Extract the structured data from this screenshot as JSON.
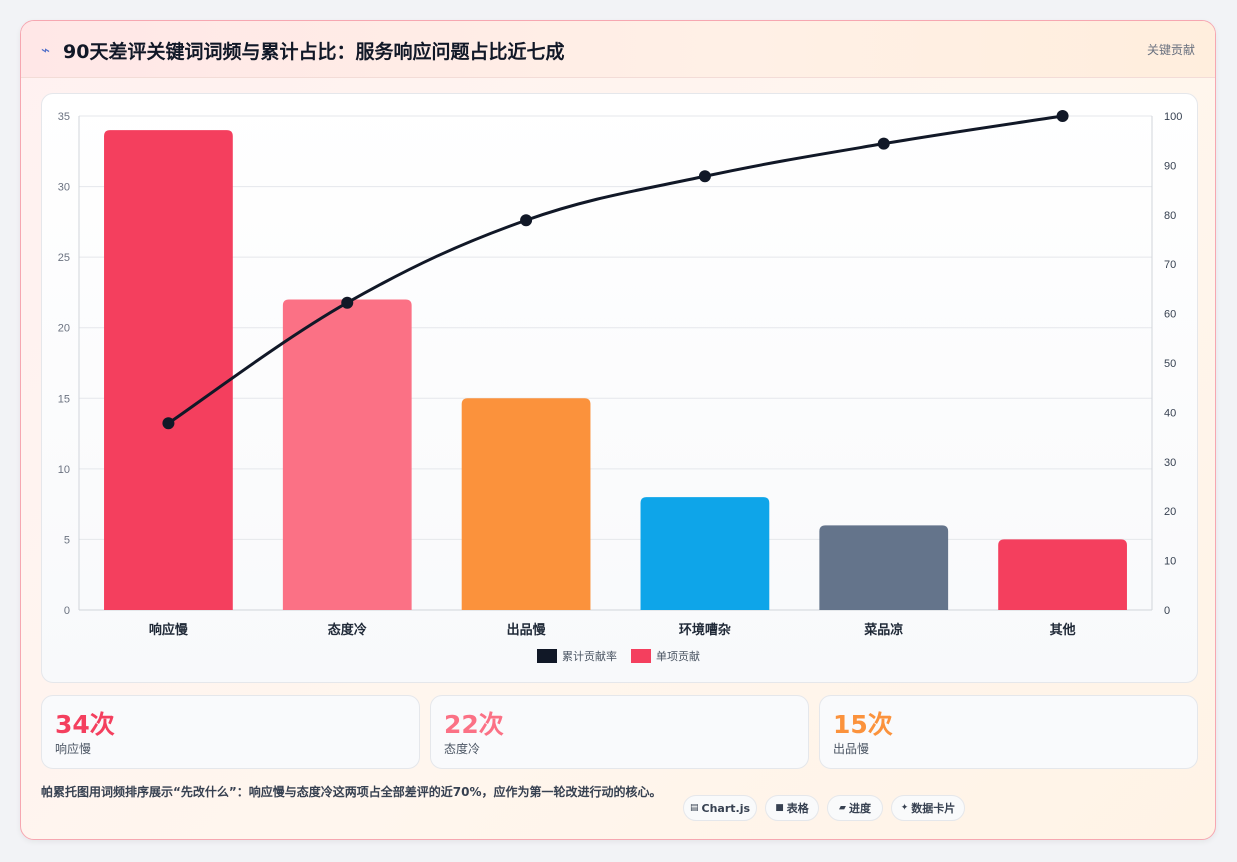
{
  "header": {
    "title": "90天差评关键词词频与累计占比：服务响应问题占比近七成",
    "tag": "关键贡献",
    "icon": "lightning-icon"
  },
  "chart_data": {
    "type": "bar",
    "categories": [
      "响应慢",
      "态度冷",
      "出品慢",
      "环境嘈杂",
      "菜品凉",
      "其他"
    ],
    "values": [
      34,
      22,
      15,
      8,
      6,
      5
    ],
    "bar_colors": [
      "#f43f5e",
      "#fb7185",
      "#fb923c",
      "#0ea5e9",
      "#64748b",
      "#f43f5e"
    ],
    "cumulative": [
      37.8,
      62.2,
      78.9,
      87.8,
      94.4,
      100
    ],
    "cumulative_color": "#111827",
    "ylim_left": [
      0,
      35
    ],
    "yticks_left": [
      0,
      5,
      10,
      15,
      20,
      25,
      30,
      35
    ],
    "ylim_right": [
      0,
      100
    ],
    "yticks_right": [
      0,
      10,
      20,
      30,
      40,
      50,
      60,
      70,
      80,
      90,
      100
    ],
    "legend": [
      {
        "label": "累计贡献率",
        "color": "#111827"
      },
      {
        "label": "单项贡献",
        "color": "#f43f5e"
      }
    ],
    "legend_position": "bottom-center",
    "grid": true
  },
  "stats": [
    {
      "value": "34次",
      "label": "响应慢",
      "color": "#f43f5e"
    },
    {
      "value": "22次",
      "label": "态度冷",
      "color": "#fb7185"
    },
    {
      "value": "15次",
      "label": "出品慢",
      "color": "#fb923c"
    }
  ],
  "footer": {
    "text": "帕累托图用词频排序展示“先改什么”：响应慢与态度冷这两项占全部差评的近70%，应作为第一轮改进行动的核心。"
  },
  "pills": [
    {
      "icon": "chart-icon",
      "glyph": "▤",
      "label": "Chart.js"
    },
    {
      "icon": "table-icon",
      "glyph": "■",
      "label": "表格"
    },
    {
      "icon": "progress-icon",
      "glyph": "▰",
      "label": "进度"
    },
    {
      "icon": "sparkle-icon",
      "glyph": "✦",
      "label": "数据卡片"
    }
  ]
}
